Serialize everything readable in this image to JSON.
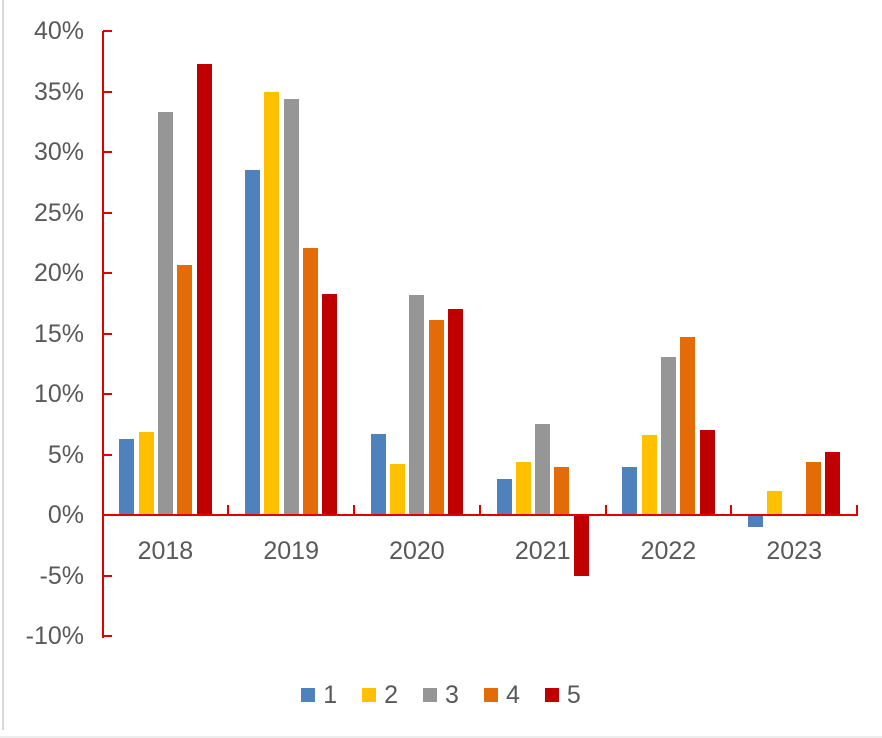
{
  "frame": {
    "left_border_color": "#d9d9d9",
    "bottom_border_color": "#ededed"
  },
  "text_color": "#595959",
  "axis_color": "#e00000",
  "chart_data": {
    "type": "bar",
    "title": "",
    "xlabel": "",
    "ylabel": "",
    "categories": [
      "2018",
      "2019",
      "2020",
      "2021",
      "2022",
      "2023"
    ],
    "series": [
      {
        "name": "1",
        "color": "#4f81bd",
        "values": [
          6.3,
          28.5,
          6.7,
          3.0,
          4.0,
          -1.0
        ]
      },
      {
        "name": "2",
        "color": "#ffc000",
        "values": [
          6.9,
          35.0,
          4.2,
          4.4,
          6.6,
          2.0
        ]
      },
      {
        "name": "3",
        "color": "#969696",
        "values": [
          33.3,
          34.4,
          18.2,
          7.5,
          13.1,
          0.0
        ]
      },
      {
        "name": "4",
        "color": "#e36c09",
        "values": [
          20.7,
          22.1,
          16.1,
          4.0,
          14.7,
          4.4
        ]
      },
      {
        "name": "5",
        "color": "#c00000",
        "values": [
          37.3,
          18.3,
          17.0,
          -5.0,
          7.0,
          5.2
        ]
      }
    ],
    "ylim": [
      -10,
      40
    ],
    "ytick_step": 5,
    "yticks": [
      {
        "value": 40,
        "label": "40%"
      },
      {
        "value": 35,
        "label": "35%"
      },
      {
        "value": 30,
        "label": "30%"
      },
      {
        "value": 25,
        "label": "25%"
      },
      {
        "value": 20,
        "label": "20%"
      },
      {
        "value": 15,
        "label": "15%"
      },
      {
        "value": 10,
        "label": "10%"
      },
      {
        "value": 5,
        "label": "5%"
      },
      {
        "value": 0,
        "label": "0%"
      },
      {
        "value": -5,
        "label": "-5%"
      },
      {
        "value": -10,
        "label": "-10%"
      }
    ],
    "grid": false,
    "legend_position": "bottom",
    "legend_labels": [
      "1",
      "2",
      "3",
      "4",
      "5"
    ]
  }
}
